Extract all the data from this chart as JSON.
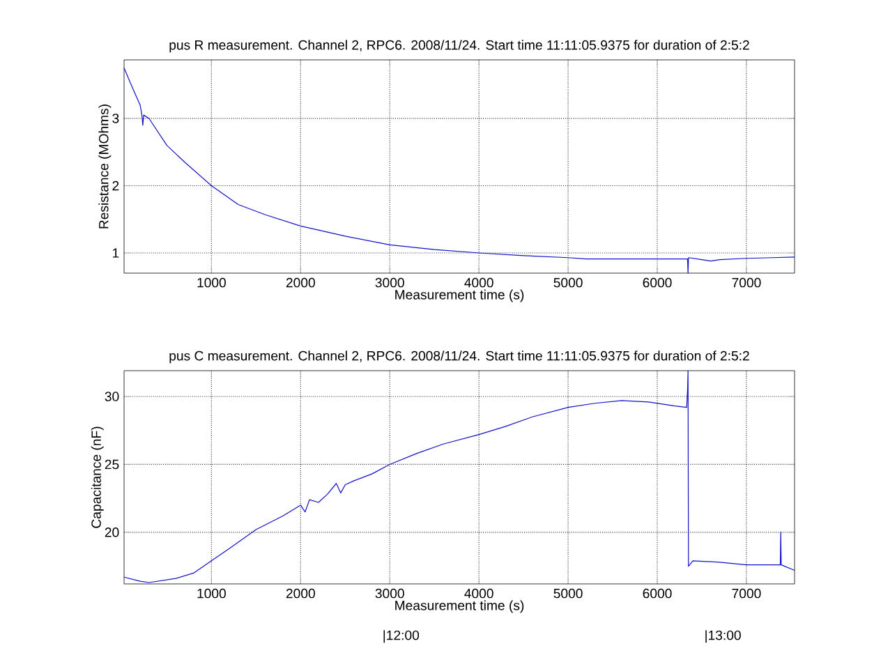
{
  "chart_data": [
    {
      "type": "line",
      "title": "pus R measurement. Channel 2, RPC6. 2008/11/24. Start time 11:11:05.9375 for duration of 2:5:2",
      "xlabel": "Measurement time (s)",
      "ylabel": "Resistance (MOhms)",
      "xlim": [
        20,
        7540
      ],
      "ylim": [
        0.7,
        3.87
      ],
      "xticks": [
        1000,
        2000,
        3000,
        4000,
        5000,
        6000,
        7000
      ],
      "yticks": [
        1,
        2,
        3
      ],
      "grid": true,
      "series": [
        {
          "color": "#1010c8",
          "x": [
            20,
            100,
            200,
            220,
            230,
            240,
            300,
            500,
            700,
            1000,
            1300,
            1600,
            2000,
            2500,
            3000,
            3500,
            4000,
            4500,
            5000,
            5200,
            6000,
            6340,
            6345,
            6350,
            6500,
            6600,
            6700,
            7000,
            7300,
            7540
          ],
          "values": [
            3.75,
            3.5,
            3.2,
            3.05,
            2.9,
            3.05,
            3.0,
            2.6,
            2.35,
            2.0,
            1.72,
            1.57,
            1.4,
            1.25,
            1.12,
            1.05,
            1.0,
            0.96,
            0.93,
            0.91,
            0.91,
            0.91,
            0.7,
            0.93,
            0.9,
            0.88,
            0.9,
            0.92,
            0.93,
            0.94
          ]
        }
      ]
    },
    {
      "type": "line",
      "title": "pus C measurement. Channel 2, RPC6. 2008/11/24. Start time 11:11:05.9375 for duration of 2:5:2",
      "xlabel": "Measurement time (s)",
      "ylabel": "Capacitance (nF)",
      "xlim": [
        20,
        7540
      ],
      "ylim": [
        16.2,
        31.9
      ],
      "xticks": [
        1000,
        2000,
        3000,
        4000,
        5000,
        6000,
        7000
      ],
      "yticks": [
        20,
        25,
        30
      ],
      "grid": true,
      "annotations": [
        "|12:00",
        "|13:00"
      ],
      "series": [
        {
          "color": "#1010c8",
          "x": [
            20,
            200,
            300,
            600,
            800,
            1000,
            1200,
            1500,
            1800,
            2000,
            2050,
            2100,
            2200,
            2300,
            2400,
            2450,
            2500,
            2600,
            2800,
            3000,
            3300,
            3600,
            4000,
            4300,
            4600,
            5000,
            5300,
            5600,
            5900,
            6200,
            6330,
            6340,
            6345,
            6350,
            6400,
            6700,
            7000,
            7380,
            7385,
            7390,
            7540
          ],
          "values": [
            16.7,
            16.4,
            16.3,
            16.6,
            17.0,
            17.9,
            18.8,
            20.2,
            21.2,
            22.0,
            21.5,
            22.4,
            22.2,
            22.8,
            23.6,
            22.9,
            23.5,
            23.8,
            24.3,
            25.0,
            25.8,
            26.5,
            27.2,
            27.8,
            28.5,
            29.2,
            29.5,
            29.7,
            29.6,
            29.3,
            29.2,
            30.5,
            31.9,
            17.5,
            17.9,
            17.8,
            17.6,
            17.6,
            20.0,
            17.6,
            17.2
          ]
        }
      ]
    }
  ]
}
